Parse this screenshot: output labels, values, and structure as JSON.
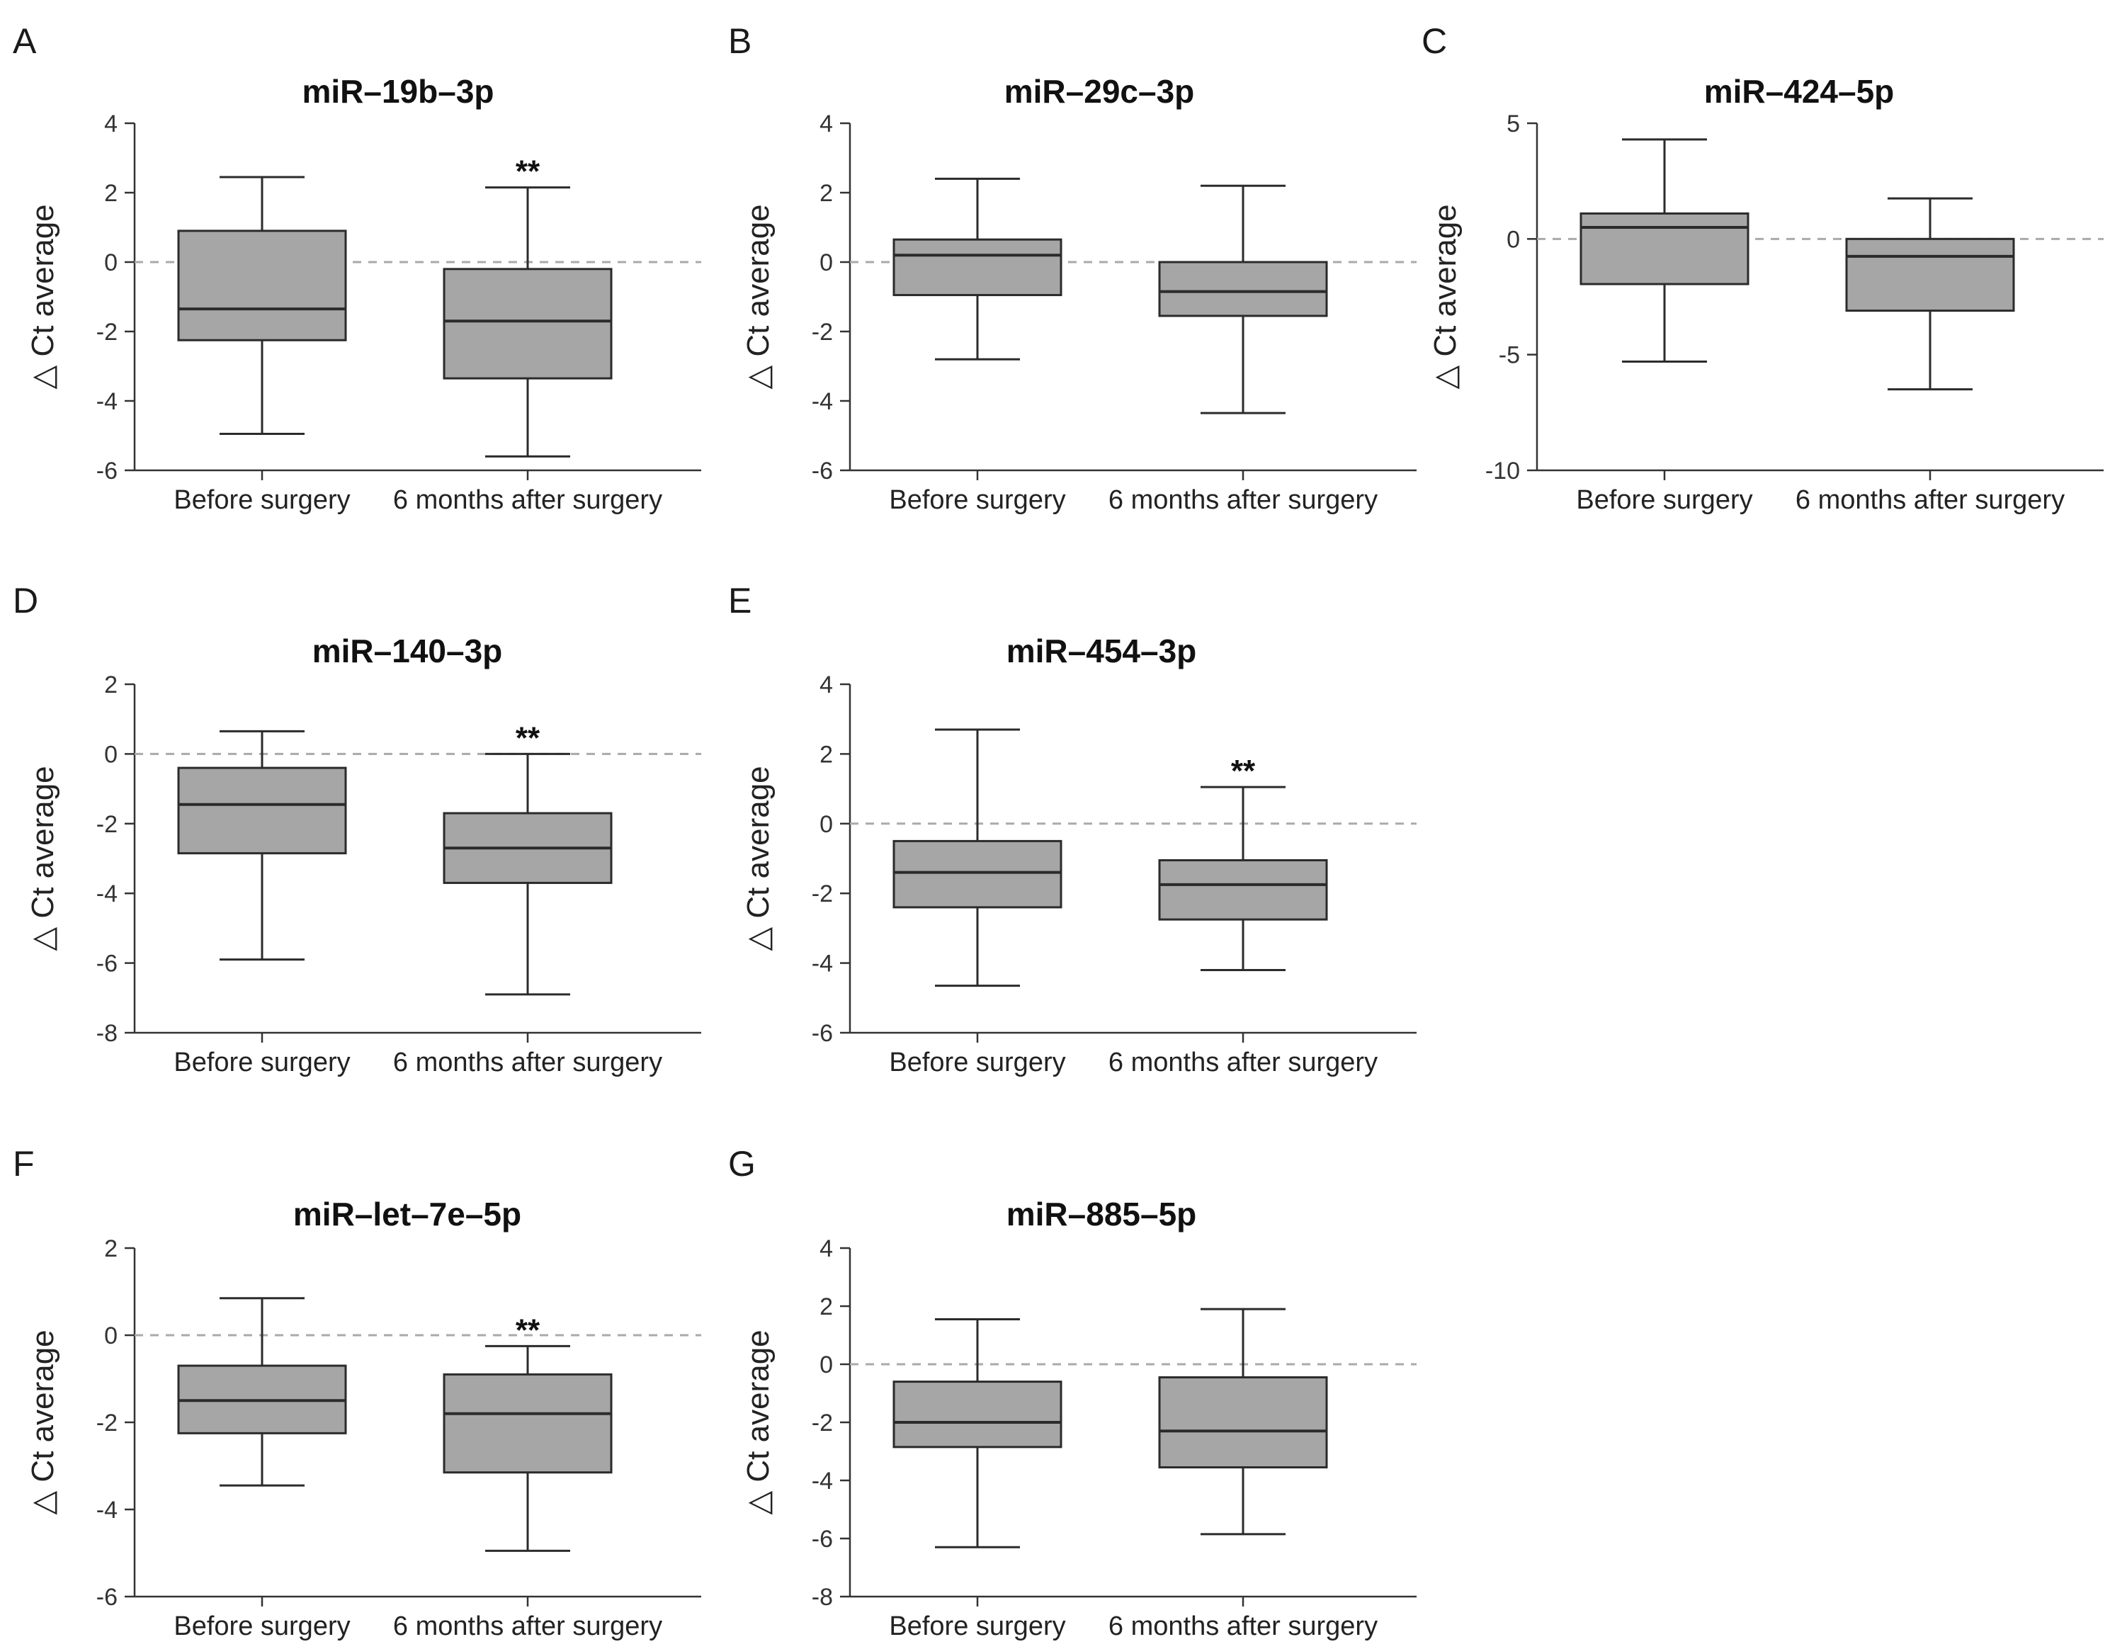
{
  "figure": {
    "categories": [
      "Before surgery",
      "6 months after surgery"
    ],
    "ylabel": "△ Ct average"
  },
  "chart_data": [
    {
      "panel": "A",
      "type": "box",
      "title": "miR–19b–3p",
      "ylabel": "△ Ct average",
      "ylim": [
        -6,
        4
      ],
      "yticks": [
        4,
        2,
        0,
        -2,
        -4,
        -6
      ],
      "reference_line": 0,
      "categories": [
        "Before surgery",
        "6 months after surgery"
      ],
      "boxes": [
        {
          "min": -4.95,
          "q1": -2.25,
          "median": -1.35,
          "q3": 0.9,
          "max": 2.45,
          "sig": ""
        },
        {
          "min": -5.6,
          "q1": -3.35,
          "median": -1.7,
          "q3": -0.2,
          "max": 2.15,
          "sig": "**"
        }
      ]
    },
    {
      "panel": "B",
      "type": "box",
      "title": "miR–29c–3p",
      "ylabel": "△ Ct average",
      "ylim": [
        -6,
        4
      ],
      "yticks": [
        4,
        2,
        0,
        -2,
        -4,
        -6
      ],
      "reference_line": 0,
      "categories": [
        "Before surgery",
        "6 months after surgery"
      ],
      "boxes": [
        {
          "min": -2.8,
          "q1": -0.95,
          "median": 0.2,
          "q3": 0.65,
          "max": 2.4,
          "sig": ""
        },
        {
          "min": -4.35,
          "q1": -1.55,
          "median": -0.85,
          "q3": 0.0,
          "max": 2.2,
          "sig": ""
        }
      ]
    },
    {
      "panel": "C",
      "type": "box",
      "title": "miR–424–5p",
      "ylabel": "△ Ct average",
      "ylim": [
        -10,
        5
      ],
      "yticks": [
        5,
        0,
        -5,
        -10
      ],
      "reference_line": 0,
      "categories": [
        "Before surgery",
        "6 months after surgery"
      ],
      "boxes": [
        {
          "min": -5.3,
          "q1": -1.95,
          "median": 0.5,
          "q3": 1.1,
          "max": 4.3,
          "sig": ""
        },
        {
          "min": -6.5,
          "q1": -3.1,
          "median": -0.75,
          "q3": 0.0,
          "max": 1.75,
          "sig": ""
        }
      ]
    },
    {
      "panel": "D",
      "type": "box",
      "title": "miR–140–3p",
      "ylabel": "△ Ct average",
      "ylim": [
        -8,
        2
      ],
      "yticks": [
        2,
        0,
        -2,
        -4,
        -6,
        -8
      ],
      "reference_line": 0,
      "categories": [
        "Before surgery",
        "6 months after surgery"
      ],
      "boxes": [
        {
          "min": -5.9,
          "q1": -2.85,
          "median": -1.45,
          "q3": -0.4,
          "max": 0.65,
          "sig": ""
        },
        {
          "min": -6.9,
          "q1": -3.7,
          "median": -2.7,
          "q3": -1.7,
          "max": 0.0,
          "sig": "**"
        }
      ]
    },
    {
      "panel": "E",
      "type": "box",
      "title": "miR–454–3p",
      "ylabel": "△ Ct average",
      "ylim": [
        -6,
        4
      ],
      "yticks": [
        4,
        2,
        0,
        -2,
        -4,
        -6
      ],
      "reference_line": 0,
      "categories": [
        "Before surgery",
        "6 months after surgery"
      ],
      "boxes": [
        {
          "min": -4.65,
          "q1": -2.4,
          "median": -1.4,
          "q3": -0.5,
          "max": 2.7,
          "sig": ""
        },
        {
          "min": -4.2,
          "q1": -2.75,
          "median": -1.75,
          "q3": -1.05,
          "max": 1.05,
          "sig": "**"
        }
      ]
    },
    {
      "panel": "F",
      "type": "box",
      "title": "miR–let–7e–5p",
      "ylabel": "△ Ct average",
      "ylim": [
        -6,
        2
      ],
      "yticks": [
        2,
        0,
        -2,
        -4,
        -6
      ],
      "reference_line": 0,
      "categories": [
        "Before surgery",
        "6 months after surgery"
      ],
      "boxes": [
        {
          "min": -3.45,
          "q1": -2.25,
          "median": -1.5,
          "q3": -0.7,
          "max": 0.85,
          "sig": ""
        },
        {
          "min": -4.95,
          "q1": -3.15,
          "median": -1.8,
          "q3": -0.9,
          "max": -0.25,
          "sig": "**"
        }
      ]
    },
    {
      "panel": "G",
      "type": "box",
      "title": "miR–885–5p",
      "ylabel": "△ Ct average",
      "ylim": [
        -8,
        4
      ],
      "yticks": [
        4,
        2,
        0,
        -2,
        -4,
        -6,
        -8
      ],
      "reference_line": 0,
      "categories": [
        "Before surgery",
        "6 months after surgery"
      ],
      "boxes": [
        {
          "min": -6.3,
          "q1": -2.85,
          "median": -2.0,
          "q3": -0.6,
          "max": 1.55,
          "sig": ""
        },
        {
          "min": -5.85,
          "q1": -3.55,
          "median": -2.3,
          "q3": -0.45,
          "max": 1.9,
          "sig": ""
        }
      ]
    }
  ]
}
